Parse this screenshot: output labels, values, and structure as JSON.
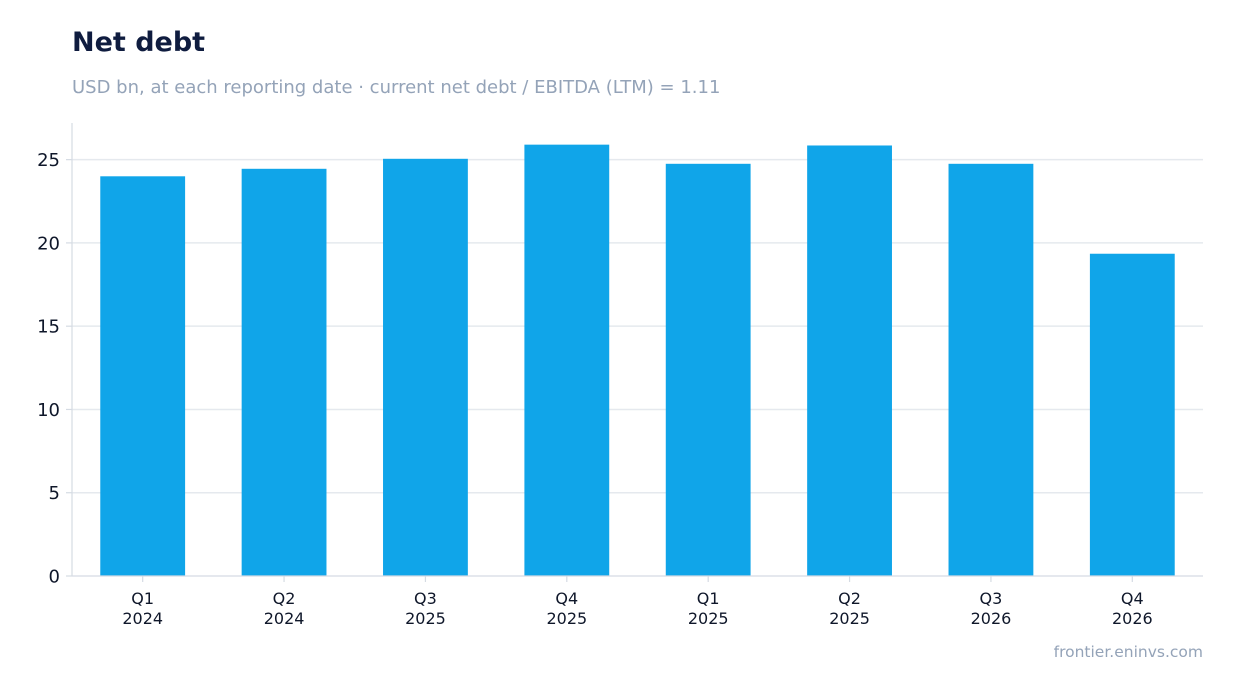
{
  "header": {
    "title": "Net debt",
    "subtitle": "USD bn, at each reporting date · current net debt / EBITDA (LTM) = 1.11"
  },
  "footer": {
    "source": "frontier.eninvs.com"
  },
  "chart_data": {
    "type": "bar",
    "title": "Net debt",
    "subtitle": "USD bn, at each reporting date · current net debt / EBITDA (LTM) = 1.11",
    "categories": [
      [
        "Q1",
        "2024"
      ],
      [
        "Q2",
        "2024"
      ],
      [
        "Q3",
        "2025"
      ],
      [
        "Q4",
        "2025"
      ],
      [
        "Q1",
        "2025"
      ],
      [
        "Q2",
        "2025"
      ],
      [
        "Q3",
        "2026"
      ],
      [
        "Q4",
        "2026"
      ]
    ],
    "values": [
      24.0,
      24.45,
      25.05,
      25.9,
      24.75,
      25.85,
      24.75,
      19.35
    ],
    "ylim": [
      0,
      27.2
    ],
    "yticks": [
      0,
      5,
      10,
      15,
      20,
      25
    ],
    "grid": true,
    "legend": "none",
    "colors": {
      "bar": "#10a5e9",
      "grid": "#e5e9ee",
      "axis": "#d5dbe3"
    }
  }
}
